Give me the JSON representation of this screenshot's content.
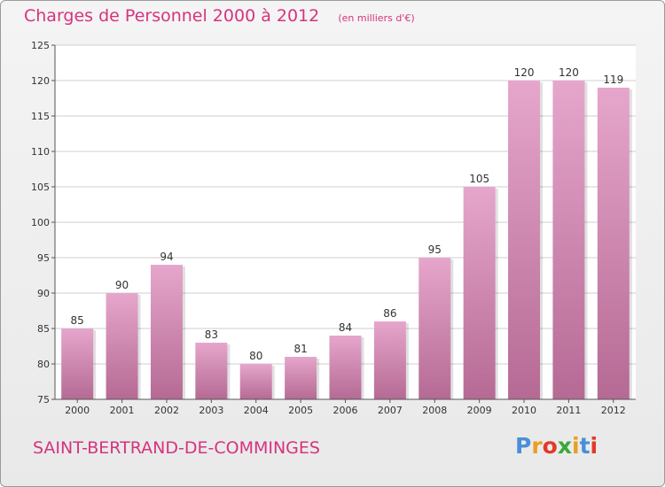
{
  "header": {
    "title": "Charges de Personnel 2000 à 2012",
    "subtitle": "(en milliers d'€)"
  },
  "footer": {
    "commune": "SAINT-BERTRAND-DE-COMMINGES",
    "logo_text": "Proxiti",
    "logo_colors": [
      "#4a8fd6",
      "#e8a020",
      "#e23a2a",
      "#3aa83a",
      "#e8a020",
      "#4a8fd6",
      "#e23a2a"
    ]
  },
  "colors": {
    "bar_top": "#e6a6cc",
    "bar_bottom": "#b56a94",
    "accent": "#d6337f",
    "grid": "#cfcfcf"
  },
  "chart_data": {
    "type": "bar",
    "categories": [
      "2000",
      "2001",
      "2002",
      "2003",
      "2004",
      "2005",
      "2006",
      "2007",
      "2008",
      "2009",
      "2010",
      "2011",
      "2012"
    ],
    "values": [
      85,
      90,
      94,
      83,
      80,
      81,
      84,
      86,
      95,
      105,
      120,
      120,
      119
    ],
    "title": "Charges de Personnel 2000 à 2012",
    "subtitle": "(en milliers d'€)",
    "xlabel": "",
    "ylabel": "",
    "ylim": [
      75,
      125
    ],
    "yticks": [
      75,
      80,
      85,
      90,
      95,
      100,
      105,
      110,
      115,
      120,
      125
    ],
    "grid": true,
    "legend": "none",
    "data_labels": true
  }
}
